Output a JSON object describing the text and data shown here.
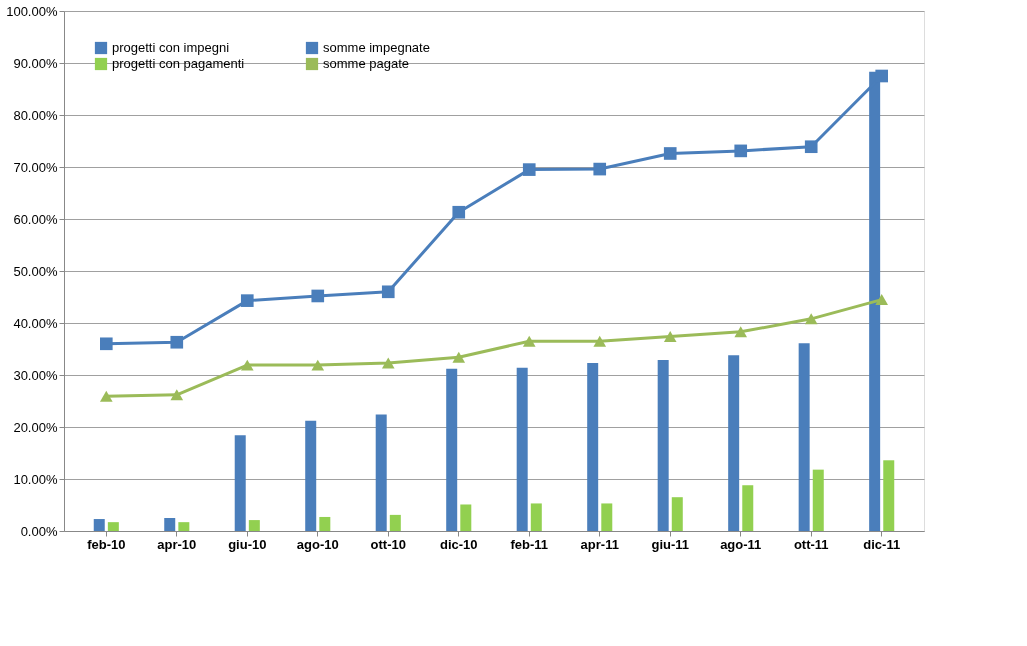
{
  "chart_data": {
    "type": "bar",
    "categories": [
      "feb-10",
      "apr-10",
      "giu-10",
      "ago-10",
      "ott-10",
      "dic-10",
      "feb-11",
      "apr-11",
      "giu-11",
      "ago-11",
      "ott-11",
      "dic-11"
    ],
    "series": [
      {
        "name": "progetti con impegni",
        "color": "#4a7ebb",
        "values": [
          2.3,
          2.5,
          18.4,
          21.2,
          22.4,
          31.2,
          31.4,
          32.3,
          32.9,
          33.8,
          36.1,
          88.3
        ]
      },
      {
        "name": "progetti con pagamenti",
        "color": "#92d050",
        "values": [
          1.7,
          1.7,
          2.1,
          2.7,
          3.1,
          5.1,
          5.3,
          5.3,
          6.5,
          8.8,
          11.8,
          13.6
        ]
      },
      {
        "name": "somme impegnate",
        "type": "line",
        "marker": "square",
        "color": "#4a7ebb",
        "values": [
          36.0,
          36.3,
          44.3,
          45.2,
          46.0,
          61.3,
          69.5,
          69.6,
          72.6,
          73.1,
          73.9,
          87.5
        ]
      },
      {
        "name": "somme pagate",
        "type": "line",
        "marker": "triangle",
        "color": "#9bbb59",
        "values": [
          25.9,
          26.2,
          31.9,
          31.9,
          32.3,
          33.4,
          36.5,
          36.5,
          37.4,
          38.3,
          40.8,
          44.5
        ]
      }
    ],
    "ylim": [
      0,
      100
    ],
    "yticks": [
      {
        "value": 0,
        "label": "0.00%"
      },
      {
        "value": 10,
        "label": "10.00%"
      },
      {
        "value": 20,
        "label": "20.00%"
      },
      {
        "value": 30,
        "label": "30.00%"
      },
      {
        "value": 40,
        "label": "40.00%"
      },
      {
        "value": 50,
        "label": "50.00%"
      },
      {
        "value": 60,
        "label": "60.00%"
      },
      {
        "value": 70,
        "label": "70.00%"
      },
      {
        "value": 80,
        "label": "80.00%"
      },
      {
        "value": 90,
        "label": "90.00%"
      },
      {
        "value": 100,
        "label": "100.00%"
      }
    ],
    "grid": "y",
    "legend": "top left"
  }
}
